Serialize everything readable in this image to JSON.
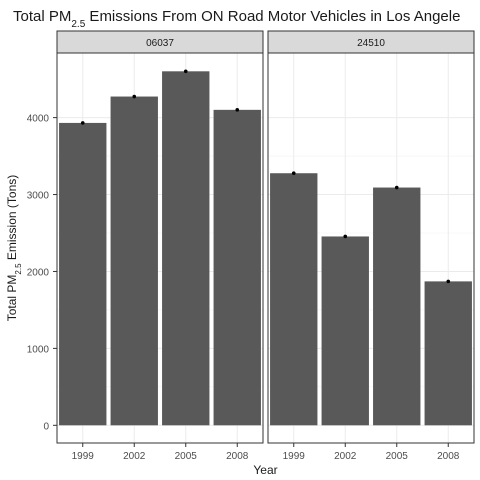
{
  "chart_data": {
    "type": "bar",
    "title": {
      "prefix": "Total PM",
      "sub": "2.5",
      "suffix": " Emissions From ON Road Motor Vehicles in Los Angele"
    },
    "xlabel": "Year",
    "ylabel": {
      "prefix": "Total PM",
      "sub": "2.5",
      "suffix": " Emission (Tons)"
    },
    "categories": [
      "1999",
      "2002",
      "2005",
      "2008"
    ],
    "yticks": [
      0,
      1000,
      2000,
      3000,
      4000
    ],
    "ylim": [
      -230,
      4840
    ],
    "grid": true,
    "colors": {
      "bar": "#595959",
      "strip_fill": "#d9d9d9",
      "grid": "#ebebeb",
      "panel_border": "#333333",
      "text": "#1a1a1a",
      "tick_text": "#4d4d4d"
    },
    "facets": [
      {
        "name": "06037",
        "values": [
          3931,
          4274,
          4602,
          4101
        ]
      },
      {
        "name": "24510",
        "values": [
          3277,
          2455,
          3091,
          1871
        ]
      }
    ]
  }
}
